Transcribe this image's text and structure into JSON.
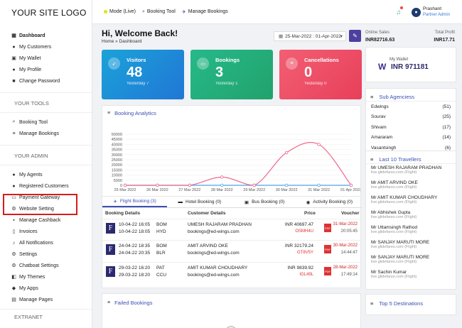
{
  "logo": "YOUR SITE LOGO",
  "sidebar": {
    "items_main": [
      {
        "label": "Dashboard",
        "icon": "dashboard-icon",
        "bold": true
      },
      {
        "label": "My Customers",
        "icon": "user-icon"
      },
      {
        "label": "My Wallet",
        "icon": "wallet-icon"
      },
      {
        "label": "My Profile",
        "icon": "user-icon"
      },
      {
        "label": "Change Password",
        "icon": "lock-icon"
      }
    ],
    "section_tools": "YOUR TOOLS",
    "items_tools": [
      {
        "label": "Booking Tool",
        "icon": "search-icon"
      },
      {
        "label": "Manage Bookings",
        "icon": "list-icon"
      }
    ],
    "section_admin": "YOUR ADMIN",
    "items_admin": [
      {
        "label": "My Agents",
        "icon": "users-icon"
      },
      {
        "label": "Registered Customers",
        "icon": "users-icon"
      },
      {
        "label": "Payment Gateway",
        "icon": "card-icon"
      },
      {
        "label": "Website Setting",
        "icon": "cogs-icon"
      },
      {
        "label": "Manage Cashback",
        "icon": "gift-icon"
      },
      {
        "label": "Invoices",
        "icon": "file-icon"
      },
      {
        "label": "All Notifications",
        "icon": "bell-icon"
      },
      {
        "label": "Settings",
        "icon": "gear-icon"
      },
      {
        "label": "Chatboat Settings",
        "icon": "gear-icon"
      },
      {
        "label": "My Themes",
        "icon": "theme-icon"
      },
      {
        "label": "My Apps",
        "icon": "apps-icon"
      },
      {
        "label": "Manage Pages",
        "icon": "pages-icon"
      }
    ],
    "section_extranet": "EXTRANET"
  },
  "topbar": {
    "mode": "Mode (Live)",
    "booking_tool": "Booking Tool",
    "manage_bookings": "Manage Bookings",
    "user_name": "Prashant",
    "user_role": "Partner Admin"
  },
  "header": {
    "welcome": "Hi, Welcome Back!",
    "breadcrumb": "Home » Dashboard",
    "date_range": "25-Mar-2022 : 01-Apr-2022"
  },
  "cards": [
    {
      "label": "Visitors",
      "value": "48",
      "sub": "Yesterday 7"
    },
    {
      "label": "Bookings",
      "value": "3",
      "sub": "Yesterday 1"
    },
    {
      "label": "Cancellations",
      "value": "0",
      "sub": "Yesterday 0"
    }
  ],
  "analytics": {
    "title": "Booking Analytics"
  },
  "chart_data": {
    "type": "line",
    "categories": [
      "25 Mar 2022",
      "26 Mar 2022",
      "27 Mar 2022",
      "28 Mar 2022",
      "29 Mar 2022",
      "30 Mar 2022",
      "31 Mar 2022",
      "01 Apr 2022"
    ],
    "series": [
      {
        "name": "Flight Booking",
        "values": [
          0,
          0,
          0,
          8000,
          0,
          32000,
          40000,
          0
        ],
        "color": "#f0668a"
      },
      {
        "name": "Hotel Booking",
        "values": [
          0,
          0,
          0,
          0,
          0,
          0,
          0,
          0
        ],
        "color": "#4da3e6"
      }
    ],
    "yticks": [
      "0",
      "5000",
      "10000",
      "15000",
      "20000",
      "25000",
      "30000",
      "35000",
      "40000",
      "45000",
      "50000"
    ],
    "ylim": [
      0,
      50000
    ],
    "legend": "top-center"
  },
  "tabs": [
    {
      "label": "Flight Booking (3)",
      "icon": "plane-icon"
    },
    {
      "label": "Hotel Booking (0)",
      "icon": "bed-icon"
    },
    {
      "label": "Bus Booking (0)",
      "icon": "bus-icon"
    },
    {
      "label": "Activity Booking (0)",
      "icon": "camera-icon"
    }
  ],
  "table": {
    "headers": {
      "details": "Booking Details",
      "customer": "Customer Details",
      "price": "Price",
      "voucher": "Voucher"
    },
    "rows": [
      {
        "dep_time": "10-04-22 16:05",
        "arr_time": "10-04-22 18:05",
        "from": "BOM",
        "to": "HYD",
        "name": "UMESH RAJARAM PRADHAN",
        "email": "bookings@ed-wings.com",
        "price": "INR 40697.47",
        "pnr": "OSMH4U",
        "vdate": "31-Mar-2022",
        "vtime": "20:05:45"
      },
      {
        "dep_time": "24-04-22 18:35",
        "arr_time": "24-04-22 20:35",
        "from": "BOM",
        "to": "BLR",
        "name": "AMIT ARVIND OKE",
        "email": "bookings@ed-wings.com",
        "price": "INR 32179.24",
        "pnr": "GT8V5Y",
        "vdate": "30-Mar-2022",
        "vtime": "14:44:47"
      },
      {
        "dep_time": "29-03-22 16:20",
        "arr_time": "29-03-22 18:20",
        "from": "PAT",
        "to": "CCU",
        "name": "AMIT KUMAR CHOUDHARY",
        "email": "bookings@ed-wings.com",
        "price": "INR 9839.92",
        "pnr": "IGL49L",
        "vdate": "28-Mar-2022",
        "vtime": "17:49:14"
      }
    ]
  },
  "failed": {
    "title": "Failed Bookings"
  },
  "right": {
    "online_sales_label": "Online Sales",
    "online_sales_value": "INR82716.63",
    "total_profit_label": "Total Profit",
    "total_profit_value": "INR17.71",
    "wallet_label": "My Wallet",
    "wallet_value": "INR 971181",
    "sub_agencies_title": "Sub Agenciess",
    "agencies": [
      {
        "name": "Edwings",
        "count": "(51)"
      },
      {
        "name": "Sourav",
        "count": "(25)"
      },
      {
        "name": "Shivam",
        "count": "(17)"
      },
      {
        "name": "Amararam",
        "count": "(14)"
      },
      {
        "name": "Vasantsingh",
        "count": "(6)"
      }
    ],
    "travellers_title": "Last 10 Travellers",
    "travellers": [
      {
        "name": "Mr UMESH RAJARAM PRADHAN",
        "sub": "live.glidefares.com (Flight)"
      },
      {
        "name": "Mr AMIT ARVIND OKE",
        "sub": "live.glidefares.com (Flight)"
      },
      {
        "name": "Mr AMIT KUMAR CHOUDHARY",
        "sub": "live.glidefares.com (Flight)"
      },
      {
        "name": "Mr Abhishek Gupta",
        "sub": "live.glidefares.com (Flight)"
      },
      {
        "name": "Mr Uttamsingh Rathod",
        "sub": "live.glidefares.com (Flight)"
      },
      {
        "name": "Mr SANJAY MARUTI MORE",
        "sub": "live.glidefares.com (Flight)"
      },
      {
        "name": "Mr SANJAY MARUTI MORE",
        "sub": "live.glidefares.com (Flight)"
      },
      {
        "name": "Mr Sachin Kumar",
        "sub": "live.glidefares.com (Flight)"
      }
    ],
    "top_dest_title": "Top 5 Destinations"
  }
}
